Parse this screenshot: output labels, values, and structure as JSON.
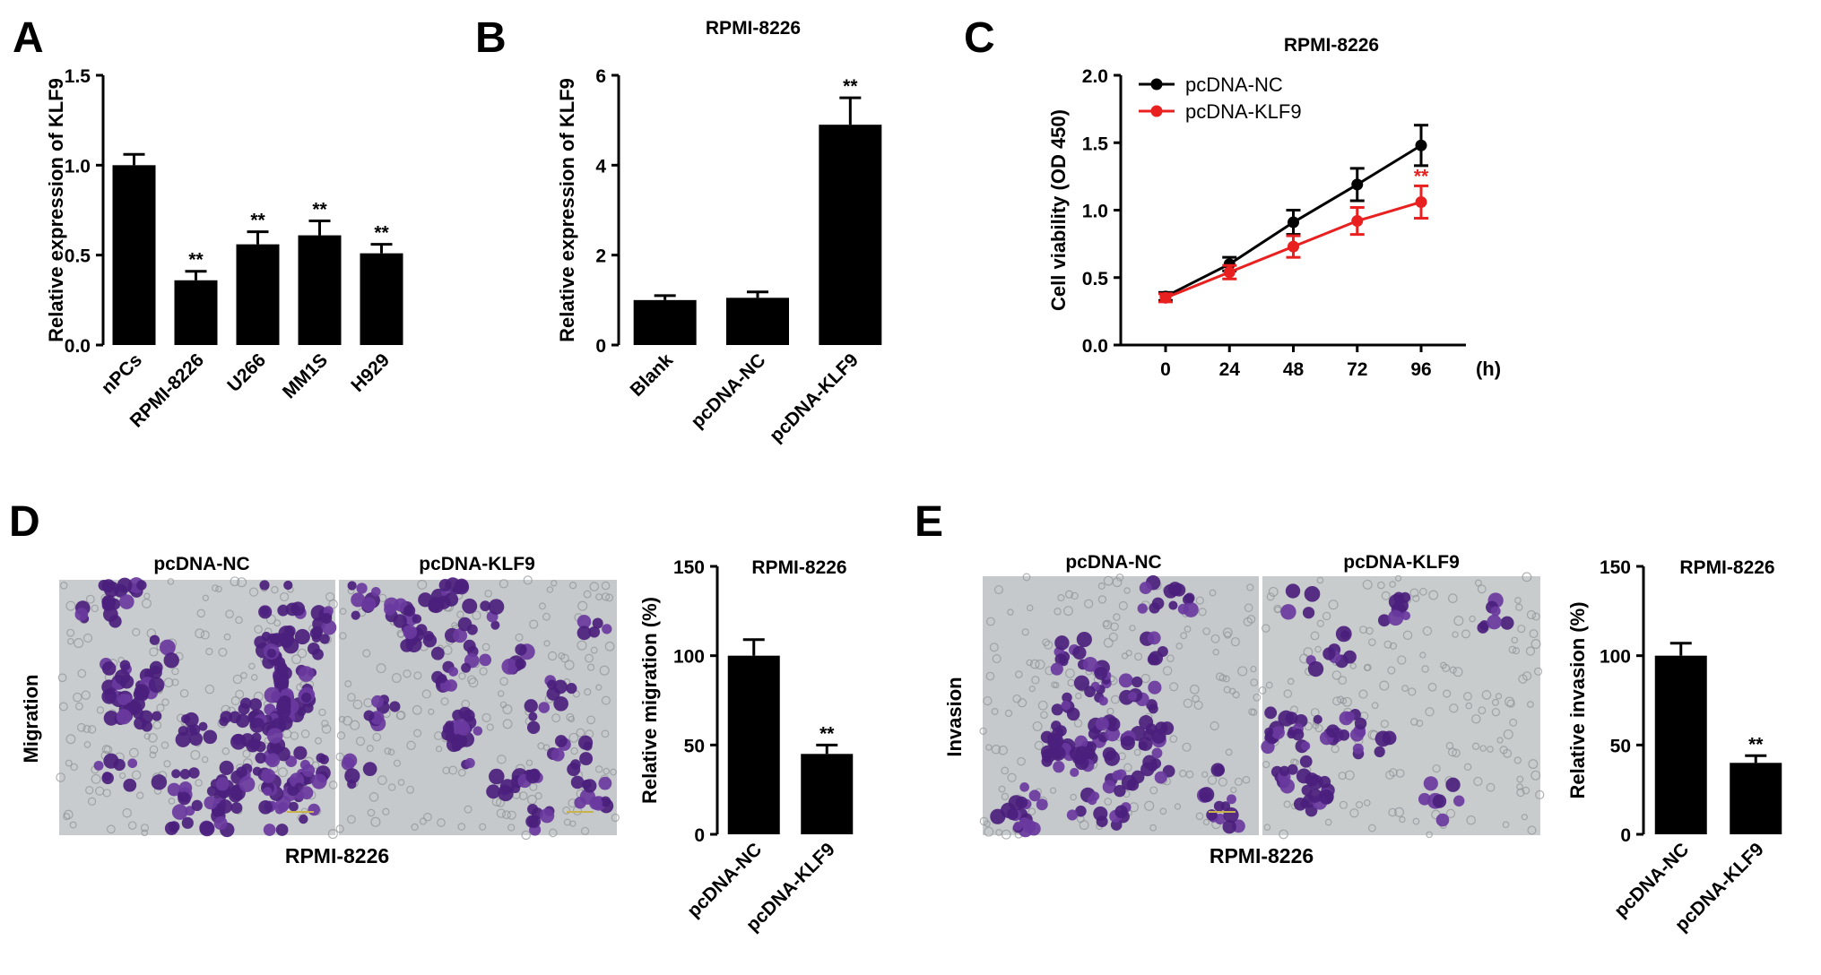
{
  "panels": {
    "A": {
      "letter": "A"
    },
    "B": {
      "letter": "B"
    },
    "C": {
      "letter": "C"
    },
    "D": {
      "letter": "D"
    },
    "E": {
      "letter": "E"
    }
  },
  "micrographs": {
    "D": {
      "row_label": "Migration",
      "bottom_label": "RPMI-8226",
      "left_title": "pcDNA-NC",
      "right_title": "pcDNA-KLF9"
    },
    "E": {
      "row_label": "Invasion",
      "bottom_label": "RPMI-8226",
      "left_title": "pcDNA-NC",
      "right_title": "pcDNA-KLF9"
    }
  },
  "colors": {
    "bar": "#000000",
    "nc_line": "#000000",
    "klf9_line": "#e8201f",
    "stain": "#4b1f7d",
    "background_field": "#c9cdd0"
  },
  "chart_data": [
    {
      "id": "A",
      "type": "bar",
      "title": "",
      "ylabel": "Relative expression of KLF9",
      "xlabel": "",
      "ylim": [
        0,
        1.5
      ],
      "yticks": [
        "0.0",
        "0.5",
        "1.0",
        "1.5"
      ],
      "categories": [
        "nPCs",
        "RPMI-8226",
        "U266",
        "MM1S",
        "H929"
      ],
      "values": [
        1.0,
        0.36,
        0.56,
        0.61,
        0.51
      ],
      "errors": [
        0.06,
        0.05,
        0.07,
        0.08,
        0.05
      ],
      "annotations": [
        "",
        "**",
        "**",
        "**",
        "**"
      ]
    },
    {
      "id": "B",
      "type": "bar",
      "title": "RPMI-8226",
      "ylabel": "Relative expression of KLF9",
      "xlabel": "",
      "ylim": [
        0,
        6
      ],
      "yticks": [
        "0",
        "2",
        "4",
        "6"
      ],
      "categories": [
        "Blank",
        "pcDNA-NC",
        "pcDNA-KLF9"
      ],
      "values": [
        1.0,
        1.05,
        4.9
      ],
      "errors": [
        0.1,
        0.13,
        0.6
      ],
      "annotations": [
        "",
        "",
        "**"
      ]
    },
    {
      "id": "C",
      "type": "line",
      "title": "RPMI-8226",
      "ylabel": "Cell viability (OD 450)",
      "xlabel": "(h)",
      "ylim": [
        0,
        2.0
      ],
      "yticks": [
        "0.0",
        "0.5",
        "1.0",
        "1.5",
        "2.0"
      ],
      "x": [
        0,
        24,
        48,
        72,
        96
      ],
      "xticks": [
        "0",
        "24",
        "48",
        "72",
        "96"
      ],
      "legend_position": "top-left",
      "series": [
        {
          "name": "pcDNA-NC",
          "values": [
            0.36,
            0.6,
            0.91,
            1.19,
            1.48
          ],
          "errors": [
            0.03,
            0.05,
            0.09,
            0.12,
            0.15
          ]
        },
        {
          "name": "pcDNA-KLF9",
          "values": [
            0.35,
            0.54,
            0.73,
            0.92,
            1.06
          ],
          "errors": [
            0.03,
            0.05,
            0.08,
            0.1,
            0.12
          ]
        }
      ],
      "annotation": "**"
    },
    {
      "id": "D",
      "type": "bar",
      "title": "RPMI-8226",
      "ylabel": "Relative migration (%)",
      "xlabel": "",
      "ylim": [
        0,
        150
      ],
      "yticks": [
        "0",
        "50",
        "100",
        "150"
      ],
      "categories": [
        "pcDNA-NC",
        "pcDNA-KLF9"
      ],
      "values": [
        100,
        45
      ],
      "errors": [
        9,
        5
      ],
      "annotations": [
        "",
        "**"
      ]
    },
    {
      "id": "E",
      "type": "bar",
      "title": "RPMI-8226",
      "ylabel": "Relative invasion (%)",
      "xlabel": "",
      "ylim": [
        0,
        150
      ],
      "yticks": [
        "0",
        "50",
        "100",
        "150"
      ],
      "categories": [
        "pcDNA-NC",
        "pcDNA-KLF9"
      ],
      "values": [
        100,
        40
      ],
      "errors": [
        7,
        4
      ],
      "annotations": [
        "",
        "**"
      ]
    }
  ]
}
